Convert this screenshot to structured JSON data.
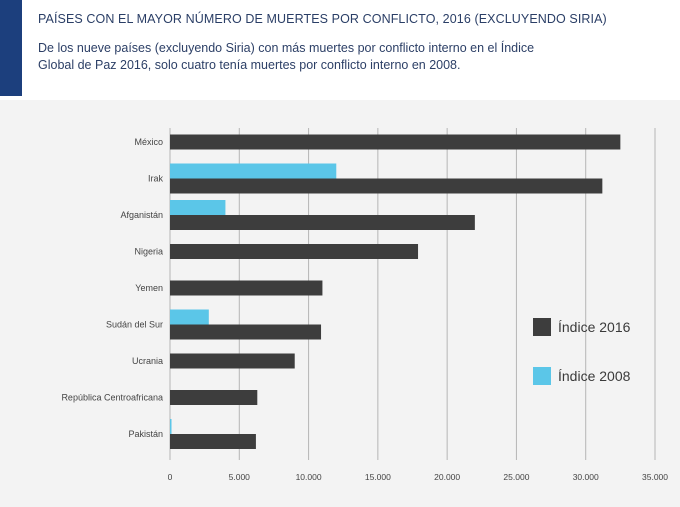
{
  "header": {
    "title": "PAÍSES CON EL MAYOR NÚMERO DE MUERTES POR CONFLICTO, 2016 (EXCLUYENDO SIRIA)",
    "subtitle_line1": "De los nueve países (excluyendo Siria) con más muertes por conflicto interno en el Índice",
    "subtitle_line2": "Global de Paz 2016, solo cuatro tenía muertes por conflicto interno en 2008."
  },
  "colors": {
    "accent": "#1c3f7d",
    "series_2016": "#3d3d3d",
    "series_2008": "#5bc6e8",
    "grid": "#b5b5b5",
    "panel": "#f3f3f3"
  },
  "chart_data": {
    "type": "bar",
    "orientation": "horizontal",
    "categories": [
      "México",
      "Irak",
      "Afganistán",
      "Nigeria",
      "Yemen",
      "Sudán del Sur",
      "Ucrania",
      "República Centroafricana",
      "Pakistán"
    ],
    "series": [
      {
        "name": "Índice 2016",
        "values": [
          32500,
          31200,
          22000,
          17900,
          11000,
          10900,
          9000,
          6300,
          6200
        ]
      },
      {
        "name": "Índice 2008",
        "values": [
          0,
          12000,
          4000,
          0,
          0,
          2800,
          0,
          0,
          100
        ]
      }
    ],
    "xlim": [
      0,
      35000
    ],
    "xticks": [
      0,
      5000,
      10000,
      15000,
      20000,
      25000,
      30000,
      35000
    ],
    "xtick_labels": [
      "0",
      "5.000",
      "10.000",
      "15.000",
      "20.000",
      "25.000",
      "30.000",
      "35.000"
    ],
    "grid": "vertical",
    "legend_position": "right"
  }
}
